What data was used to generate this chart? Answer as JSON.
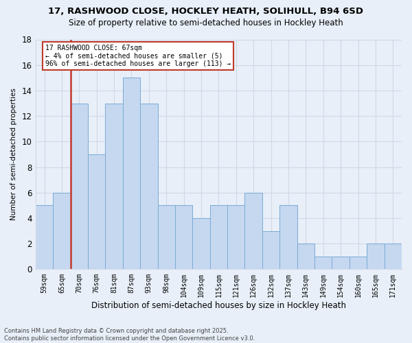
{
  "title": "17, RASHWOOD CLOSE, HOCKLEY HEATH, SOLIHULL, B94 6SD",
  "subtitle": "Size of property relative to semi-detached houses in Hockley Heath",
  "xlabel": "Distribution of semi-detached houses by size in Hockley Heath",
  "ylabel": "Number of semi-detached properties",
  "annotation_title": "17 RASHWOOD CLOSE: 67sqm",
  "annotation_line1": "← 4% of semi-detached houses are smaller (5)",
  "annotation_line2": "96% of semi-detached houses are larger (113) →",
  "footer_line1": "Contains HM Land Registry data © Crown copyright and database right 2025.",
  "footer_line2": "Contains public sector information licensed under the Open Government Licence v3.0.",
  "bins": [
    "59sqm",
    "65sqm",
    "70sqm",
    "76sqm",
    "81sqm",
    "87sqm",
    "93sqm",
    "98sqm",
    "104sqm",
    "109sqm",
    "115sqm",
    "121sqm",
    "126sqm",
    "132sqm",
    "137sqm",
    "143sqm",
    "149sqm",
    "154sqm",
    "160sqm",
    "165sqm",
    "171sqm"
  ],
  "values": [
    5,
    6,
    13,
    9,
    13,
    15,
    13,
    5,
    5,
    4,
    5,
    5,
    6,
    3,
    5,
    2,
    1,
    1,
    1,
    2,
    2
  ],
  "bar_color": "#c5d8f0",
  "bar_edge_color": "#7aaad4",
  "highlight_color": "#c0392b",
  "red_line_bin_index": 1,
  "ylim": [
    0,
    18
  ],
  "yticks": [
    0,
    2,
    4,
    6,
    8,
    10,
    12,
    14,
    16,
    18
  ],
  "background_color": "#e8eff8",
  "grid_color": "#d0d8e8",
  "title_fontsize": 9.5,
  "subtitle_fontsize": 8.5
}
